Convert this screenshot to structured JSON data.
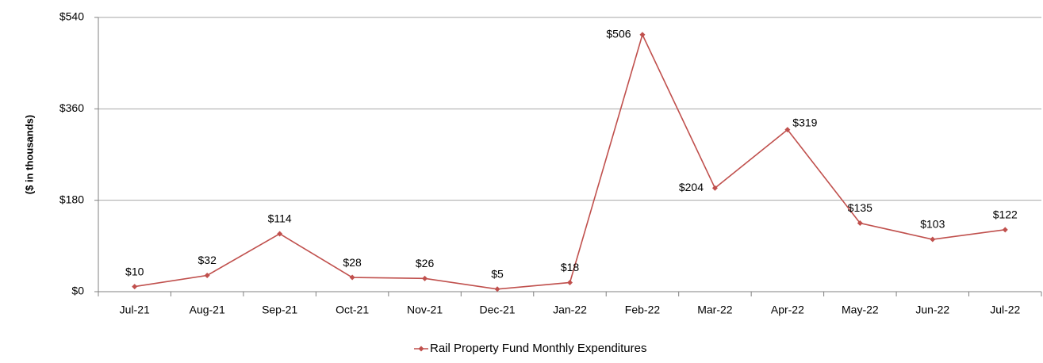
{
  "chart_data": {
    "type": "line",
    "y_axis_label": "($ in thousands)",
    "categories": [
      "Jul-21",
      "Aug-21",
      "Sep-21",
      "Oct-21",
      "Nov-21",
      "Dec-21",
      "Jan-22",
      "Feb-22",
      "Mar-22",
      "Apr-22",
      "May-22",
      "Jun-22",
      "Jul-22"
    ],
    "series": [
      {
        "name": "Rail Property Fund Monthly Expenditures",
        "color": "#c0504d",
        "values": [
          10,
          32,
          114,
          28,
          26,
          5,
          18,
          506,
          204,
          319,
          135,
          103,
          122
        ],
        "value_labels": [
          "$10",
          "$32",
          "$114",
          "$28",
          "$26",
          "$5",
          "$18",
          "$506",
          "$204",
          "$319",
          "$135",
          "$103",
          "$122"
        ]
      }
    ],
    "ylim": [
      0,
      540
    ],
    "yticks": [
      {
        "value": 0,
        "label": "$0"
      },
      {
        "value": 180,
        "label": "$180"
      },
      {
        "value": 360,
        "label": "$360"
      },
      {
        "value": 540,
        "label": "$540"
      }
    ],
    "grid": true,
    "legend": "bottom"
  }
}
